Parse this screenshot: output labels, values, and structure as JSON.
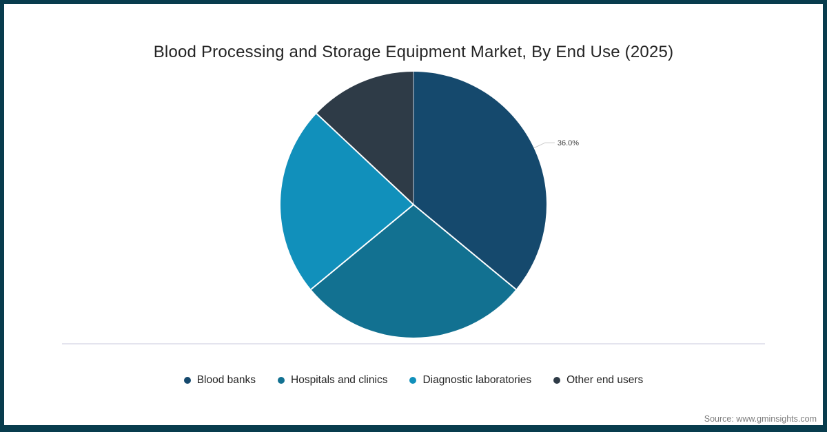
{
  "title": "Blood Processing and Storage Equipment Market, By End Use (2025)",
  "source": "Source: www.gminsights.com",
  "frame": {
    "border_color": "#083C4D",
    "background": "#ffffff"
  },
  "chart_data": {
    "type": "pie",
    "title": "Blood Processing and Storage Equipment Market, By End Use (2025)",
    "unit": "%",
    "start_angle_deg": 0,
    "direction": "clockwise",
    "legend_position": "bottom",
    "slices": [
      {
        "label": "Blood banks",
        "value": 36.0,
        "color": "#15496D",
        "data_label": "36.0%"
      },
      {
        "label": "Hospitals and clinics",
        "value": 28.0,
        "color": "#127191",
        "data_label": null
      },
      {
        "label": "Diagnostic laboratories",
        "value": 23.0,
        "color": "#1190BB",
        "data_label": null
      },
      {
        "label": "Other end users",
        "value": 13.0,
        "color": "#2E3B47",
        "data_label": null
      }
    ]
  }
}
